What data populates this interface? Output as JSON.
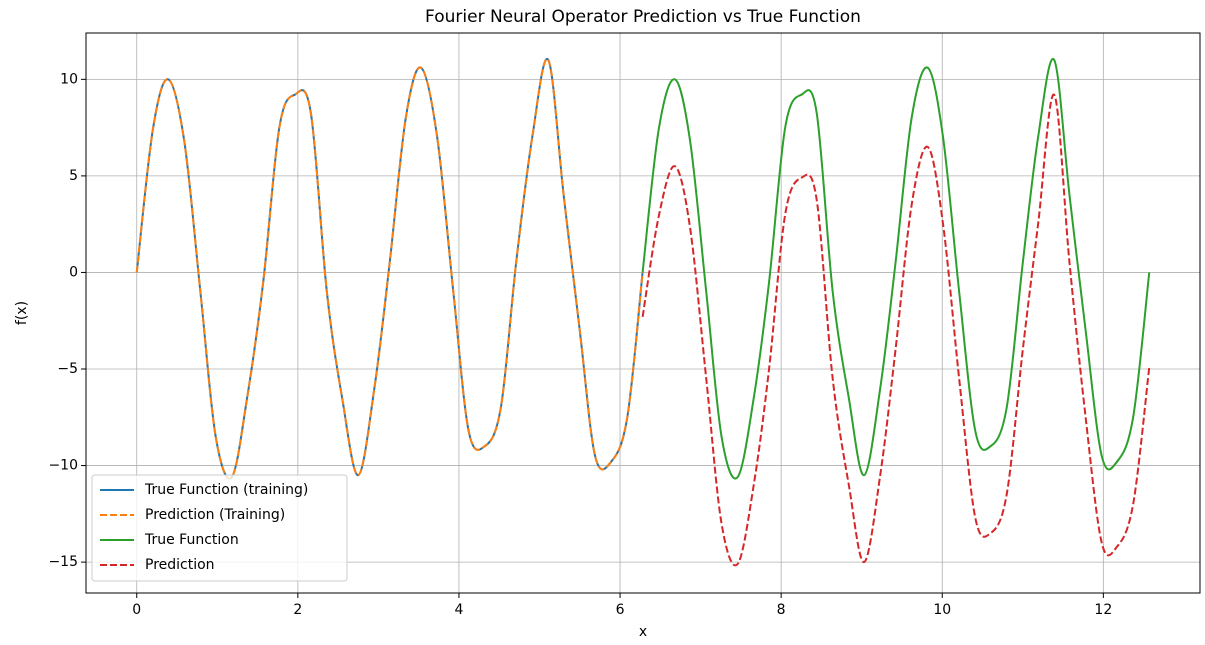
{
  "chart_data": {
    "type": "line",
    "title": "Fourier Neural Operator Prediction vs True Function",
    "x_label": "x",
    "y_label": "f(x)",
    "x": [
      0,
      0.2,
      0.39,
      0.59,
      0.79,
      0.98,
      1.18,
      1.37,
      1.57,
      1.77,
      1.96,
      2.16,
      2.36,
      2.55,
      2.75,
      2.95,
      3.14,
      3.34,
      3.53,
      3.73,
      3.93,
      4.12,
      4.32,
      4.52,
      4.71,
      4.91,
      5.11,
      5.3,
      5.5,
      5.69,
      5.89,
      6.09,
      6.28,
      6.48,
      6.68,
      6.87,
      7.07,
      7.26,
      7.46,
      7.66,
      7.85,
      8.05,
      8.25,
      8.44,
      8.64,
      8.84,
      9.03,
      9.23,
      9.42,
      9.62,
      9.82,
      10.01,
      10.21,
      10.41,
      10.6,
      10.8,
      11.0,
      11.19,
      11.39,
      11.58,
      11.78,
      11.98,
      12.17,
      12.37,
      12.57
    ],
    "series": [
      {
        "name": "True Function (training)",
        "color": "#1f77b4",
        "dashed": false,
        "values": [
          0,
          7.4,
          10.0,
          6.8,
          -1.0,
          -8.5,
          -10.6,
          -6.5,
          -0.5,
          7.5,
          9.2,
          8.3,
          -1.0,
          -6.5,
          -10.5,
          -6.0,
          0.5,
          8.0,
          10.6,
          7.0,
          -1.0,
          -8.2,
          -9.0,
          -7.0,
          0.5,
          7.0,
          11.0,
          4.0,
          -3.0,
          -9.5,
          -9.8,
          -7.5,
          0,
          null,
          null,
          null,
          null,
          null,
          null,
          null,
          null,
          null,
          null,
          null,
          null,
          null,
          null,
          null,
          null,
          null,
          null,
          null,
          null,
          null,
          null,
          null,
          null,
          null,
          null,
          null,
          null,
          null,
          null,
          null,
          null
        ]
      },
      {
        "name": "Prediction (Training)",
        "color": "#ff7f0e",
        "dashed": true,
        "values": [
          0,
          7.4,
          10.0,
          6.8,
          -1.0,
          -8.5,
          -10.6,
          -6.5,
          -0.5,
          7.5,
          9.2,
          8.3,
          -1.0,
          -6.5,
          -10.5,
          -6.0,
          0.5,
          8.0,
          10.6,
          7.0,
          -1.0,
          -8.2,
          -9.0,
          -7.0,
          0.5,
          7.0,
          11.0,
          4.0,
          -3.0,
          -9.5,
          -9.8,
          -7.5,
          0,
          null,
          null,
          null,
          null,
          null,
          null,
          null,
          null,
          null,
          null,
          null,
          null,
          null,
          null,
          null,
          null,
          null,
          null,
          null,
          null,
          null,
          null,
          null,
          null,
          null,
          null,
          null,
          null,
          null,
          null,
          null,
          null
        ]
      },
      {
        "name": "True Function",
        "color": "#2ca02c",
        "dashed": false,
        "values": [
          null,
          null,
          null,
          null,
          null,
          null,
          null,
          null,
          null,
          null,
          null,
          null,
          null,
          null,
          null,
          null,
          null,
          null,
          null,
          null,
          null,
          null,
          null,
          null,
          null,
          null,
          null,
          null,
          null,
          null,
          null,
          null,
          0,
          7.4,
          10.0,
          6.8,
          -1.0,
          -8.5,
          -10.6,
          -6.5,
          -0.5,
          7.5,
          9.2,
          8.3,
          -1.0,
          -6.5,
          -10.5,
          -6.0,
          0.5,
          8.0,
          10.6,
          7.0,
          -1.0,
          -8.2,
          -9.0,
          -7.0,
          0.5,
          7.0,
          11.0,
          4.0,
          -3.0,
          -9.5,
          -9.8,
          -7.5,
          0
        ]
      },
      {
        "name": "Prediction",
        "color": "#d62728",
        "dashed": true,
        "values": [
          null,
          null,
          null,
          null,
          null,
          null,
          null,
          null,
          null,
          null,
          null,
          null,
          null,
          null,
          null,
          null,
          null,
          null,
          null,
          null,
          null,
          null,
          null,
          null,
          null,
          null,
          null,
          null,
          null,
          null,
          null,
          null,
          -2.3,
          2.9,
          5.5,
          2.3,
          -5.5,
          -13.0,
          -15.1,
          -11.0,
          -5.0,
          3.0,
          4.9,
          3.8,
          -5.5,
          -11.0,
          -15.0,
          -10.5,
          -4.0,
          3.5,
          6.5,
          2.5,
          -5.5,
          -12.7,
          -13.5,
          -11.5,
          -4.0,
          2.5,
          9.2,
          0.5,
          -7.5,
          -14.0,
          -14.2,
          -12.0,
          -4.9
        ]
      }
    ],
    "xlim": [
      -0.63,
      13.2
    ],
    "ylim": [
      -16.6,
      12.4
    ],
    "xticks": [
      0,
      2,
      4,
      6,
      8,
      10,
      12
    ],
    "yticks": [
      {
        "value": -15,
        "label": "−15"
      },
      {
        "value": -10,
        "label": "−10"
      },
      {
        "value": -5,
        "label": "−5"
      },
      0,
      5,
      10
    ],
    "grid": true,
    "legend": "lower left"
  }
}
